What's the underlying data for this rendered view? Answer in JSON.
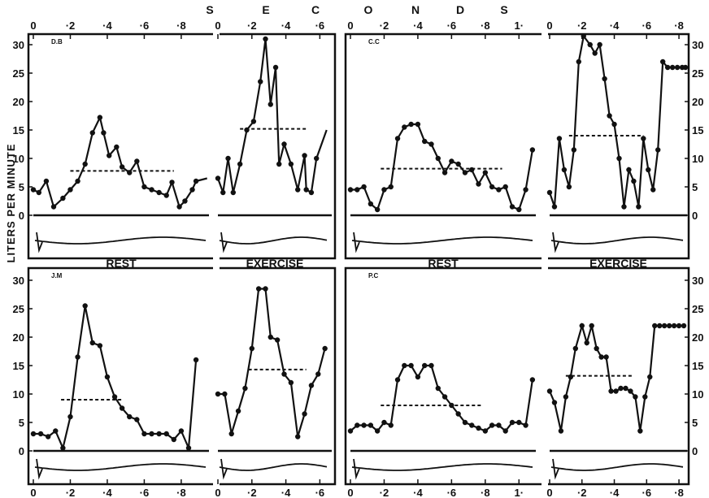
{
  "chart_data": {
    "type": "line",
    "ylabel": "LITERS PER MINUTE",
    "xlabel_letters": [
      "S",
      "E",
      "C",
      "O",
      "N",
      "D",
      "S"
    ],
    "ylim": [
      0,
      32
    ],
    "y_ticks": [
      "0",
      "5",
      "10",
      "15",
      "20",
      "25",
      "30"
    ],
    "grid": false,
    "panels": [
      {
        "subject": "D.B",
        "condition_label": "REST",
        "x_ticks": [
          "0",
          "·2",
          "·4",
          "·6",
          "·8"
        ],
        "xlim": [
          0,
          0.95
        ],
        "mean_flow": 7.8,
        "mean_span": [
          0.2,
          0.76
        ],
        "segments": [
          {
            "x": [
              0.0,
              0.03,
              0.07,
              0.11,
              0.16,
              0.2,
              0.24,
              0.28,
              0.32,
              0.36,
              0.38,
              0.41,
              0.45,
              0.48,
              0.52,
              0.56,
              0.6,
              0.64,
              0.68,
              0.72,
              0.75,
              0.79,
              0.82,
              0.86,
              0.88
            ],
            "y": [
              4.5,
              4.0,
              6.0,
              1.5,
              3.0,
              4.5,
              6.0,
              9.0,
              14.5,
              17.2,
              14.5,
              10.5,
              12.0,
              8.5,
              7.5,
              9.5,
              5.0,
              4.5,
              4.0,
              3.5,
              5.8,
              1.5,
              2.5,
              4.5,
              6.0
            ],
            "markers": true
          },
          {
            "x": [
              0.88,
              0.94
            ],
            "y": [
              6.0,
              6.5
            ],
            "markers": false
          }
        ]
      },
      {
        "subject": "",
        "condition_label": "EXERCISE",
        "x_ticks": [
          "0",
          "·2",
          "·4",
          "·6"
        ],
        "xlim": [
          0,
          0.67
        ],
        "mean_flow": 15.2,
        "mean_span": [
          0.13,
          0.52
        ],
        "segments": [
          {
            "x": [
              0.0,
              0.03,
              0.06,
              0.09,
              0.13,
              0.17,
              0.21,
              0.25,
              0.28,
              0.31,
              0.34,
              0.36,
              0.39,
              0.43,
              0.47,
              0.51,
              0.52,
              0.55,
              0.58
            ],
            "y": [
              6.5,
              4.0,
              10.0,
              4.0,
              9.0,
              15.0,
              16.5,
              23.5,
              31.0,
              19.5,
              26.0,
              9.0,
              12.5,
              9.0,
              4.5,
              10.5,
              4.5,
              4.0,
              10.0
            ],
            "markers": true
          },
          {
            "x": [
              0.58,
              0.64
            ],
            "y": [
              10.0,
              15.0
            ],
            "markers": false
          }
        ]
      },
      {
        "subject": "C.C",
        "condition_label": "REST",
        "x_ticks": [
          "0",
          "·2",
          "·4",
          "·6",
          "·8",
          "1·"
        ],
        "xlim": [
          0,
          1.1
        ],
        "mean_flow": 8.2,
        "mean_span": [
          0.18,
          0.9
        ],
        "segments": [
          {
            "x": [
              0.0,
              0.04,
              0.08,
              0.12,
              0.16,
              0.2,
              0.24,
              0.28,
              0.32,
              0.36,
              0.4,
              0.44,
              0.48,
              0.52,
              0.56,
              0.6,
              0.64,
              0.68,
              0.72,
              0.76,
              0.8,
              0.84,
              0.88,
              0.92,
              0.96,
              1.0,
              1.04,
              1.08
            ],
            "y": [
              4.5,
              4.5,
              5.0,
              2.0,
              1.0,
              4.5,
              5.0,
              13.5,
              15.5,
              16.0,
              16.0,
              13.0,
              12.5,
              10.0,
              7.5,
              9.5,
              9.0,
              7.5,
              8.0,
              5.5,
              7.5,
              5.0,
              4.5,
              5.0,
              1.5,
              1.0,
              4.5,
              11.5
            ],
            "markers": true
          }
        ]
      },
      {
        "subject": "",
        "condition_label": "EXERCISE",
        "x_ticks": [
          "0",
          "·2",
          "·4",
          "·6",
          "·8"
        ],
        "xlim": [
          0,
          0.85
        ],
        "mean_flow": 14.0,
        "mean_span": [
          0.12,
          0.58
        ],
        "segments": [
          {
            "x": [
              0.0,
              0.03,
              0.06,
              0.09,
              0.12,
              0.15,
              0.18,
              0.21,
              0.25,
              0.28,
              0.31,
              0.34,
              0.37,
              0.4,
              0.43,
              0.46,
              0.49,
              0.52,
              0.55,
              0.58,
              0.61,
              0.64,
              0.67,
              0.7,
              0.73,
              0.76,
              0.79,
              0.82,
              0.84
            ],
            "y": [
              4.0,
              1.5,
              13.5,
              8.0,
              5.0,
              11.5,
              27.0,
              31.5,
              30.0,
              28.5,
              30.0,
              24.0,
              17.5,
              16.0,
              10.0,
              1.5,
              8.0,
              6.0,
              1.5,
              13.5,
              8.0,
              4.5,
              11.5,
              27.0,
              26.0,
              26.0,
              26.0,
              26.0,
              26.0
            ],
            "markers": true
          }
        ]
      },
      {
        "subject": "J.M",
        "condition_label": "",
        "x_ticks": [
          "0",
          "·2",
          "·4",
          "·6",
          "·8"
        ],
        "xlim": [
          0,
          0.95
        ],
        "mean_flow": 9.0,
        "mean_span": [
          0.15,
          0.48
        ],
        "segments": [
          {
            "x": [
              0.0,
              0.04,
              0.08,
              0.12,
              0.16,
              0.2,
              0.24,
              0.28,
              0.32,
              0.36,
              0.4,
              0.44,
              0.48,
              0.52,
              0.56,
              0.6,
              0.64,
              0.68,
              0.72,
              0.76,
              0.8,
              0.84,
              0.88
            ],
            "y": [
              3.0,
              3.0,
              2.5,
              3.5,
              0.5,
              6.0,
              16.5,
              25.5,
              19.0,
              18.5,
              13.0,
              9.5,
              7.5,
              6.0,
              5.5,
              3.0,
              3.0,
              3.0,
              3.0,
              2.0,
              3.5,
              0.5,
              16.0
            ],
            "markers": true
          }
        ]
      },
      {
        "subject": "",
        "condition_label": "",
        "x_ticks": [
          "0",
          "·2",
          "·4",
          "·6"
        ],
        "xlim": [
          0,
          0.67
        ],
        "mean_flow": 14.3,
        "mean_span": [
          0.18,
          0.52
        ],
        "segments": [
          {
            "x": [
              0.0,
              0.04,
              0.08,
              0.12,
              0.16,
              0.2,
              0.24,
              0.28,
              0.31,
              0.35,
              0.39,
              0.43,
              0.47,
              0.51,
              0.55,
              0.59,
              0.63
            ],
            "y": [
              10.0,
              10.0,
              3.0,
              7.0,
              11.0,
              18.0,
              28.5,
              28.5,
              20.0,
              19.5,
              13.5,
              12.0,
              2.5,
              6.5,
              11.5,
              13.5,
              18.0
            ],
            "markers": true
          }
        ]
      },
      {
        "subject": "P.C",
        "condition_label": "",
        "x_ticks": [
          "0",
          "·2",
          "·4",
          "·6",
          "·8",
          "1·"
        ],
        "xlim": [
          0,
          1.1
        ],
        "mean_flow": 8.0,
        "mean_span": [
          0.18,
          0.78
        ],
        "segments": [
          {
            "x": [
              0.0,
              0.04,
              0.08,
              0.12,
              0.16,
              0.2,
              0.24,
              0.28,
              0.32,
              0.36,
              0.4,
              0.44,
              0.48,
              0.52,
              0.56,
              0.6,
              0.64,
              0.68,
              0.72,
              0.76,
              0.8,
              0.84,
              0.88,
              0.92,
              0.96,
              1.0,
              1.04,
              1.08
            ],
            "y": [
              3.5,
              4.5,
              4.5,
              4.5,
              3.5,
              5.0,
              4.5,
              12.5,
              15.0,
              15.0,
              13.0,
              15.0,
              15.0,
              11.0,
              9.5,
              8.0,
              6.5,
              5.0,
              4.5,
              4.0,
              3.5,
              4.5,
              4.5,
              3.5,
              5.0,
              5.0,
              4.5,
              12.5
            ],
            "markers": true
          }
        ]
      },
      {
        "subject": "",
        "condition_label": "",
        "x_ticks": [
          "0",
          "·2",
          "·4",
          "·6",
          "·8"
        ],
        "xlim": [
          0,
          0.85
        ],
        "mean_flow": 13.2,
        "mean_span": [
          0.1,
          0.52
        ],
        "segments": [
          {
            "x": [
              0.0,
              0.03,
              0.07,
              0.1,
              0.13,
              0.16,
              0.2,
              0.23,
              0.26,
              0.29,
              0.32,
              0.35,
              0.38,
              0.41,
              0.44,
              0.47,
              0.5,
              0.53,
              0.56,
              0.59,
              0.62,
              0.65,
              0.68,
              0.71,
              0.74,
              0.77,
              0.8,
              0.83
            ],
            "y": [
              10.5,
              8.5,
              3.5,
              9.5,
              13.0,
              18.0,
              22.0,
              19.0,
              22.0,
              18.0,
              16.5,
              16.5,
              10.5,
              10.5,
              11.0,
              11.0,
              10.5,
              9.5,
              3.5,
              9.5,
              13.0,
              22.0,
              22.0,
              22.0,
              22.0,
              22.0,
              22.0,
              22.0
            ],
            "markers": true
          }
        ]
      }
    ]
  }
}
